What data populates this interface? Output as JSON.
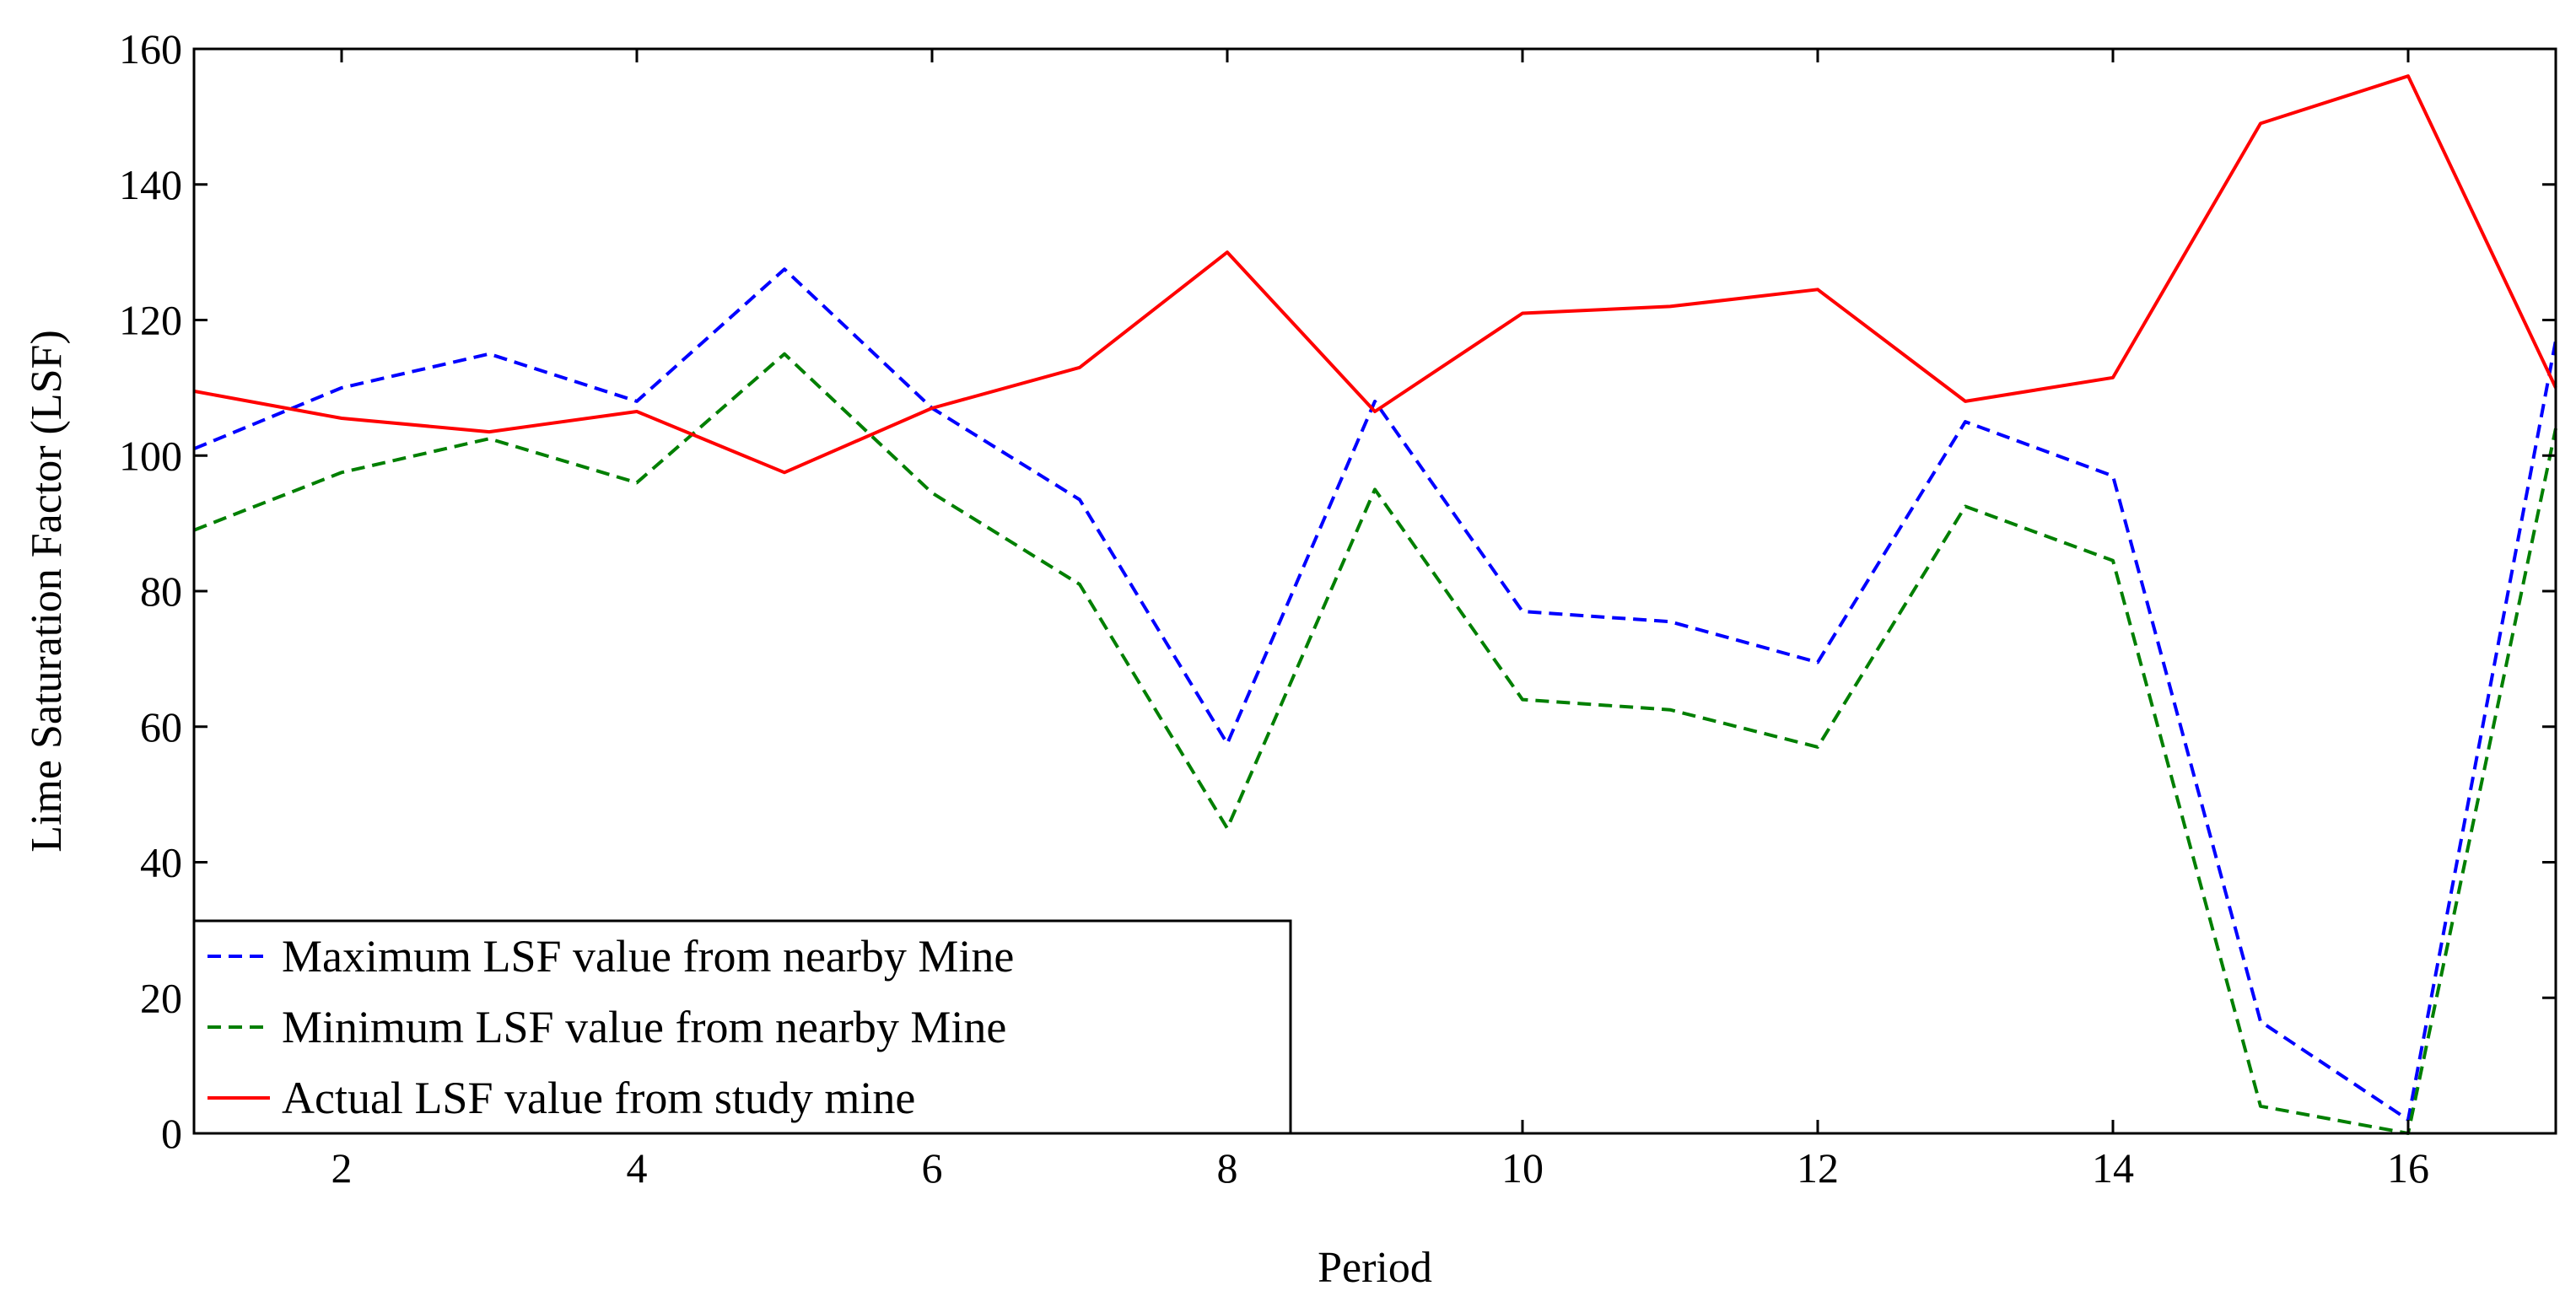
{
  "chart_data": {
    "type": "line",
    "title": "",
    "xlabel": "Period",
    "ylabel": "Lime Saturation Factor (LSF)",
    "xlim": [
      1,
      17
    ],
    "ylim": [
      0,
      160
    ],
    "xticks": [
      2,
      4,
      6,
      8,
      10,
      12,
      14,
      16
    ],
    "yticks": [
      0,
      20,
      40,
      60,
      80,
      100,
      120,
      140,
      160
    ],
    "grid": false,
    "legend_position": "bottom-left",
    "x": [
      1,
      2,
      3,
      4,
      5,
      6,
      7,
      8,
      9,
      10,
      11,
      12,
      13,
      14,
      15,
      16,
      17
    ],
    "series": [
      {
        "name": "Maximum LSF value from nearby Mine",
        "color": "#0000ff",
        "style": "dashed",
        "values": [
          101,
          110,
          115,
          108,
          127.5,
          107,
          93.5,
          57.5,
          108,
          77,
          75.5,
          69.5,
          105,
          97,
          16.5,
          2,
          117
        ]
      },
      {
        "name": "Minimum LSF value from nearby Mine",
        "color": "#007f00",
        "style": "dashed",
        "values": [
          89,
          97.5,
          102.5,
          96,
          115,
          94.5,
          81,
          45,
          95,
          64,
          62.5,
          57,
          92.5,
          84.5,
          4,
          0,
          104
        ]
      },
      {
        "name": "Actual LSF value from study mine",
        "color": "#ff0000",
        "style": "solid",
        "values": [
          109.5,
          105.5,
          103.5,
          106.5,
          97.5,
          107,
          113,
          130,
          106.5,
          121,
          122,
          124.5,
          108,
          111.5,
          149,
          156,
          110
        ]
      }
    ]
  }
}
